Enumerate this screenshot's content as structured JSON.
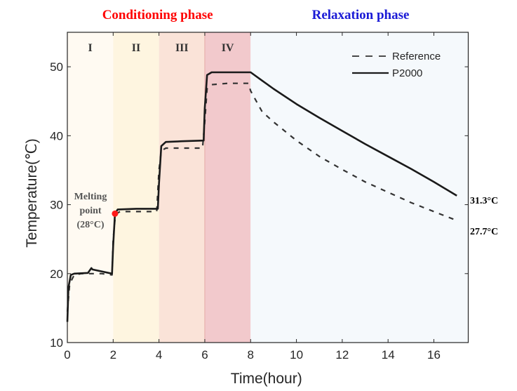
{
  "chart_data": {
    "type": "line",
    "title": "",
    "xlabel": "Time(hour)",
    "ylabel": "Temperature(℃)",
    "xlim": [
      0,
      17.5
    ],
    "ylim": [
      10,
      55
    ],
    "xticks": [
      0,
      2,
      4,
      6,
      8,
      10,
      12,
      14,
      16
    ],
    "yticks": [
      10,
      20,
      30,
      40,
      50
    ],
    "xtick_labels": [
      "0",
      "2",
      "4",
      "6",
      "8",
      "10",
      "12",
      "14",
      "16"
    ],
    "ytick_labels": [
      "10",
      "20",
      "30",
      "40",
      "50"
    ],
    "grid": false,
    "legend_position": "top-right",
    "phases": [
      {
        "label": "Conditioning phase",
        "x_range": [
          0,
          8
        ],
        "color": "#FF0000"
      },
      {
        "label": "Relaxation phase",
        "x_range": [
          8,
          17.5
        ],
        "color": "#1A1AD6"
      }
    ],
    "stages": [
      {
        "label": "I",
        "x_range": [
          0,
          2
        ],
        "fill": "#FFFAF2"
      },
      {
        "label": "II",
        "x_range": [
          2,
          4
        ],
        "fill": "#FEF5E0"
      },
      {
        "label": "III",
        "x_range": [
          4,
          6
        ],
        "fill": "#FAE3D8"
      },
      {
        "label": "IV",
        "x_range": [
          6,
          8
        ],
        "fill": "#F2C9CC"
      },
      {
        "label": "",
        "x_range": [
          8,
          17.5
        ],
        "fill": "#F5F9FC"
      }
    ],
    "series": [
      {
        "name": "Reference",
        "style": "dashed",
        "color": "#333333",
        "x": [
          0,
          0.1,
          0.3,
          0.6,
          1.0,
          1.5,
          1.95,
          2.0,
          2.1,
          2.3,
          3.0,
          3.9,
          4.0,
          4.1,
          4.3,
          5.0,
          5.9,
          6.0,
          6.1,
          6.3,
          7.0,
          7.9,
          8.0,
          8.5,
          9,
          10,
          11,
          12,
          13,
          14,
          15,
          16,
          17
        ],
        "y": [
          14.5,
          18.5,
          19.8,
          20.0,
          20.0,
          20.0,
          19.8,
          25.0,
          28.6,
          29.0,
          29.0,
          29.0,
          35.0,
          37.8,
          38.2,
          38.2,
          38.2,
          42.0,
          46.8,
          47.4,
          47.6,
          47.6,
          46.5,
          43.5,
          42.0,
          39.3,
          37.0,
          35.1,
          33.3,
          31.8,
          30.3,
          29.0,
          27.7
        ]
      },
      {
        "name": "P2000",
        "style": "solid",
        "color": "#1a1a1a",
        "x": [
          0,
          0.05,
          0.15,
          0.3,
          0.9,
          1.05,
          1.1,
          1.95,
          2.0,
          2.08,
          2.2,
          3.0,
          3.95,
          4.0,
          4.1,
          4.3,
          5.0,
          5.95,
          6.0,
          6.1,
          6.3,
          7.0,
          7.95,
          8.0,
          8.5,
          9,
          10,
          11,
          12,
          13,
          14,
          15,
          16,
          17
        ],
        "y": [
          13.0,
          18.0,
          19.8,
          20.0,
          20.1,
          20.8,
          20.6,
          20.0,
          24.0,
          28.7,
          29.3,
          29.4,
          29.4,
          33.0,
          38.5,
          39.1,
          39.2,
          39.3,
          44.0,
          48.8,
          49.2,
          49.2,
          49.2,
          49.2,
          48.0,
          46.8,
          44.6,
          42.6,
          40.7,
          38.8,
          37.0,
          35.2,
          33.3,
          31.3
        ]
      }
    ],
    "annotations": [
      {
        "text_lines": [
          "Melting",
          "point",
          "(28°C)"
        ],
        "x": 2.08,
        "y": 28.7,
        "marker_color": "#FF1A1A"
      },
      {
        "text": "31.3°C",
        "series": "P2000",
        "x": 17,
        "y": 31.3
      },
      {
        "text": "27.7°C",
        "series": "Reference",
        "x": 17,
        "y": 27.7
      }
    ]
  }
}
